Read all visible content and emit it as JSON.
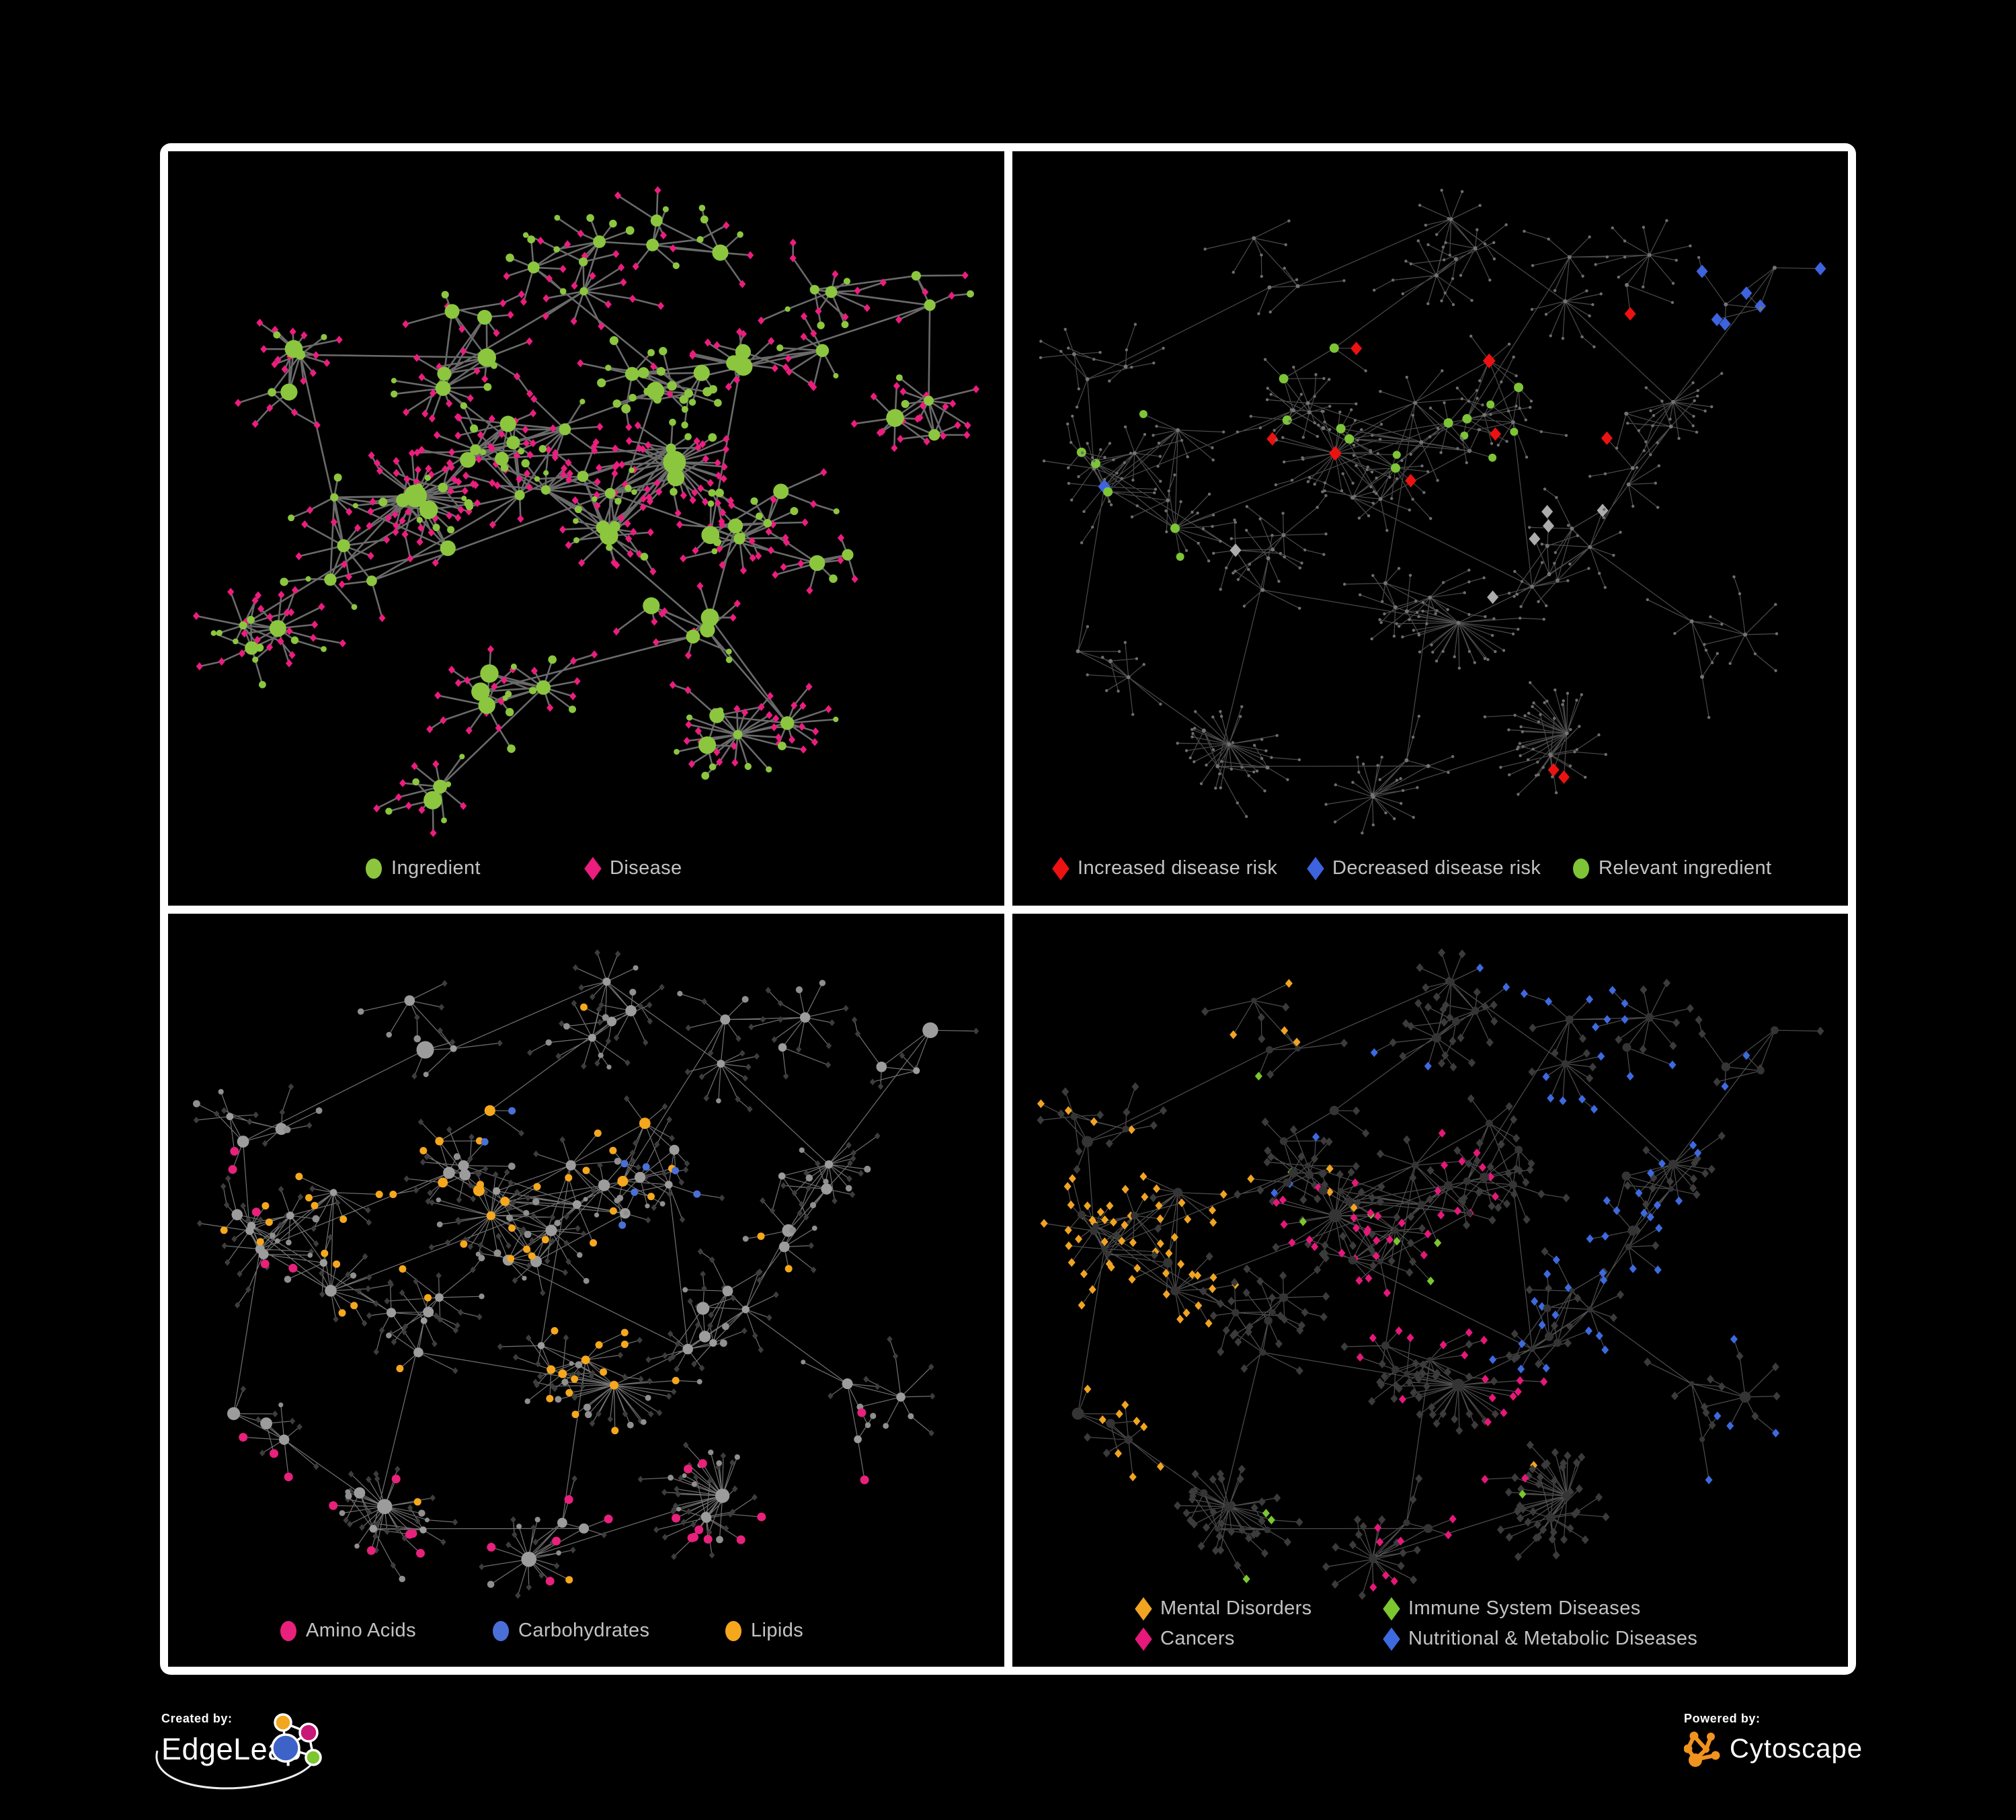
{
  "figure": {
    "background": "#000000",
    "panel_border_color": "#FFFFFF",
    "legend_text_color": "#C3C3C3"
  },
  "panels": [
    {
      "name": "ingredient-disease-network",
      "legend": [
        {
          "label": "Ingredient",
          "shape": "ellipse",
          "color": "#8CC63F"
        },
        {
          "label": "Disease",
          "shape": "diamond",
          "color": "#EB1D7E"
        }
      ]
    },
    {
      "name": "disease-risk-network",
      "legend": [
        {
          "label": "Increased disease risk",
          "shape": "diamond",
          "color": "#EC1212"
        },
        {
          "label": "Decreased disease risk",
          "shape": "diamond",
          "color": "#3D63DE"
        },
        {
          "label": "Relevant ingredient",
          "shape": "ellipse",
          "color": "#7DC437"
        }
      ]
    },
    {
      "name": "nutrient-class-network",
      "legend": [
        {
          "label": "Amino Acids",
          "shape": "ellipse",
          "color": "#E8217C"
        },
        {
          "label": "Carbohydrates",
          "shape": "ellipse",
          "color": "#4A6FD6"
        },
        {
          "label": "Lipids",
          "shape": "ellipse",
          "color": "#F5A81D"
        }
      ]
    },
    {
      "name": "disease-category-network",
      "legend": [
        {
          "label": "Mental Disorders",
          "shape": "diamond",
          "color": "#F0A422"
        },
        {
          "label": "Immune System Diseases",
          "shape": "diamond",
          "color": "#7CC62F"
        },
        {
          "label": "Cancers",
          "shape": "diamond",
          "color": "#E6187A"
        },
        {
          "label": "Nutritional & Metabolic Diseases",
          "shape": "diamond",
          "color": "#3E6AE0"
        }
      ]
    }
  ],
  "footer": {
    "created_by_label": "Created by:",
    "created_by_brand": "EdgeLeap",
    "powered_by_label": "Powered by:",
    "powered_by_brand": "Cytoscape",
    "cytoscape_orange": "#F0931F"
  },
  "chart_data": {
    "type": "network",
    "description": "Four views of one ingredient-disease association network drawn on black; hub-and-spoke topology with dense central clusters and radiating leaf fans.",
    "views": [
      {
        "panel": "top-left",
        "classes": [
          {
            "label": "Ingredient",
            "shape": "circle",
            "color": "#8CC63F",
            "approx_count": 220
          },
          {
            "label": "Disease",
            "shape": "diamond",
            "color": "#EB1D7E",
            "approx_count": 440
          }
        ],
        "edge_color": "#7C7C7C"
      },
      {
        "panel": "top-right",
        "classes": [
          {
            "label": "Increased disease risk",
            "shape": "diamond",
            "color": "#EC1212",
            "approx_count": 30
          },
          {
            "label": "Decreased disease risk",
            "shape": "diamond",
            "color": "#3D63DE",
            "approx_count": 10
          },
          {
            "label": "Relevant ingredient",
            "shape": "circle",
            "color": "#7DC437",
            "approx_count": 26
          },
          {
            "label": "unlabeled neutral",
            "shape": "diamond",
            "color": "#ACACAC",
            "approx_count": 8
          },
          {
            "label": "background node",
            "shape": "circle",
            "color": "#737373",
            "approx_count": 560
          }
        ],
        "edge_color": "#585858"
      },
      {
        "panel": "bottom-left",
        "classes": [
          {
            "label": "Amino Acids",
            "shape": "circle",
            "color": "#E8217C",
            "approx_count": 16
          },
          {
            "label": "Carbohydrates",
            "shape": "circle",
            "color": "#4A6FD6",
            "approx_count": 12
          },
          {
            "label": "Lipids",
            "shape": "circle",
            "color": "#F5A81D",
            "approx_count": 60
          },
          {
            "label": "other ingredient",
            "shape": "circle",
            "color": "#9C9C9C",
            "approx_count": 140
          },
          {
            "label": "disease node",
            "shape": "diamond",
            "color": "#3D3D3D",
            "approx_count": 420
          }
        ],
        "edge_color": "#868686"
      },
      {
        "panel": "bottom-right",
        "classes": [
          {
            "label": "Mental Disorders",
            "shape": "diamond",
            "color": "#F0A422",
            "approx_count": 95
          },
          {
            "label": "Immune System Diseases",
            "shape": "diamond",
            "color": "#7CC62F",
            "approx_count": 10
          },
          {
            "label": "Cancers",
            "shape": "diamond",
            "color": "#E6187A",
            "approx_count": 65
          },
          {
            "label": "Nutritional & Metabolic Diseases",
            "shape": "diamond",
            "color": "#3E6AE0",
            "approx_count": 75
          },
          {
            "label": "other disease",
            "shape": "diamond",
            "color": "#3B3B3B",
            "approx_count": 330
          }
        ],
        "edge_color": "#5C5C5C"
      }
    ]
  }
}
